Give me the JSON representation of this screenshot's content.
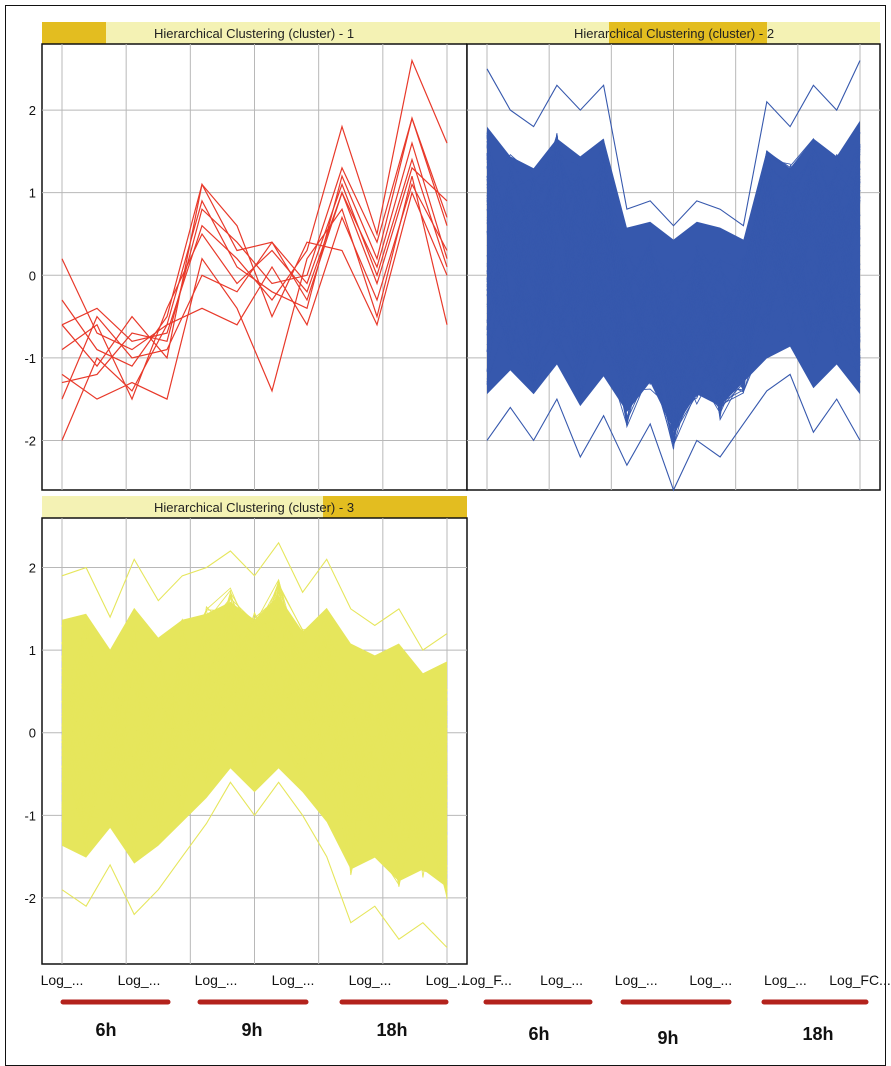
{
  "chart_data": [
    {
      "type": "line",
      "title": "Hierarchical Clustering (cluster) - 1",
      "series_color": "#e8392a",
      "x_categories": [
        "Log_...",
        "Log_...",
        "Log_...",
        "Log_...",
        "Log_...",
        "Log_..."
      ],
      "y_ticks": [
        -2,
        -1,
        0,
        1,
        2
      ],
      "ylim": [
        -2.6,
        2.8
      ],
      "lines": [
        [
          0.2,
          -0.7,
          -0.9,
          -0.6,
          0.9,
          0.1,
          -0.2,
          -0.4,
          1.2,
          0.2,
          1.9,
          0.6
        ],
        [
          -0.3,
          -0.9,
          -1.1,
          -0.5,
          1.1,
          0.3,
          0.4,
          -0.3,
          1.0,
          -0.1,
          1.3,
          0.9
        ],
        [
          -0.6,
          -0.4,
          -0.8,
          -0.7,
          0.6,
          0.2,
          -0.3,
          0.3,
          1.8,
          0.5,
          2.6,
          1.6
        ],
        [
          -1.2,
          -1.5,
          -1.3,
          -1.5,
          0.2,
          -0.4,
          -1.4,
          0.2,
          0.8,
          -0.5,
          1.2,
          -0.6
        ],
        [
          -1.5,
          -0.5,
          -1.0,
          -0.9,
          0.0,
          -0.2,
          0.4,
          -0.1,
          1.1,
          0.0,
          1.4,
          0.1
        ],
        [
          -2.0,
          -1.0,
          -1.4,
          -0.6,
          -0.4,
          -0.6,
          0.1,
          -0.6,
          0.7,
          -0.3,
          1.1,
          0.3
        ],
        [
          -1.3,
          -1.2,
          -0.7,
          -0.8,
          0.8,
          0.4,
          -0.1,
          0.0,
          1.3,
          0.4,
          1.9,
          0.7
        ],
        [
          -0.9,
          -0.6,
          -1.5,
          -0.4,
          0.5,
          -0.1,
          0.3,
          -0.2,
          1.0,
          0.1,
          1.6,
          0.2
        ],
        [
          -0.6,
          -1.1,
          -0.5,
          -1.0,
          1.1,
          0.6,
          -0.5,
          0.4,
          0.3,
          -0.6,
          1.0,
          0.0
        ]
      ]
    },
    {
      "type": "line",
      "title": "Hierarchical Clustering (cluster) - 2",
      "series_color": "#3658ad",
      "x_categories": [
        "Log_F...",
        "Log_...",
        "Log_...",
        "Log_...",
        "Log_...",
        "Log_FC..."
      ],
      "y_ticks": [
        -2,
        -1,
        0,
        1,
        2
      ],
      "ylim": [
        -2.6,
        2.8
      ],
      "band_upper": [
        2.5,
        2.0,
        1.8,
        2.3,
        2.0,
        2.3,
        0.8,
        0.9,
        0.6,
        0.9,
        0.8,
        0.6,
        2.1,
        1.8,
        2.3,
        2.0,
        2.6
      ],
      "band_lower": [
        -2.0,
        -1.6,
        -2.0,
        -1.5,
        -2.2,
        -1.7,
        -2.3,
        -1.8,
        -2.6,
        -2.0,
        -2.2,
        -1.8,
        -1.4,
        -1.2,
        -1.9,
        -1.5,
        -2.0
      ]
    },
    {
      "type": "line",
      "title": "Hierarchical Clustering (cluster) - 3",
      "series_color": "#e6e65c",
      "x_categories": [
        "Log_...",
        "Log_...",
        "Log_...",
        "Log_...",
        "Log_...",
        "Log_..."
      ],
      "y_ticks": [
        -2,
        -1,
        0,
        1,
        2
      ],
      "ylim": [
        -2.8,
        2.6
      ],
      "band_upper": [
        1.9,
        2.0,
        1.4,
        2.1,
        1.6,
        1.9,
        2.0,
        2.2,
        1.9,
        2.3,
        1.7,
        2.1,
        1.5,
        1.3,
        1.5,
        1.0,
        1.2
      ],
      "band_lower": [
        -1.9,
        -2.1,
        -1.6,
        -2.2,
        -1.9,
        -1.5,
        -1.1,
        -0.6,
        -1.0,
        -0.6,
        -1.0,
        -1.5,
        -2.3,
        -2.1,
        -2.5,
        -2.3,
        -2.6
      ]
    }
  ],
  "time_labels": [
    "6h",
    "9h",
    "18h",
    "6h",
    "9h",
    "18h"
  ],
  "colors": {
    "panel_border": "#111111",
    "grid": "#b8b8b8",
    "title_bg": "#f4f2b4",
    "title_highlight": "#e3bd20",
    "bracket": "#b3221c"
  }
}
